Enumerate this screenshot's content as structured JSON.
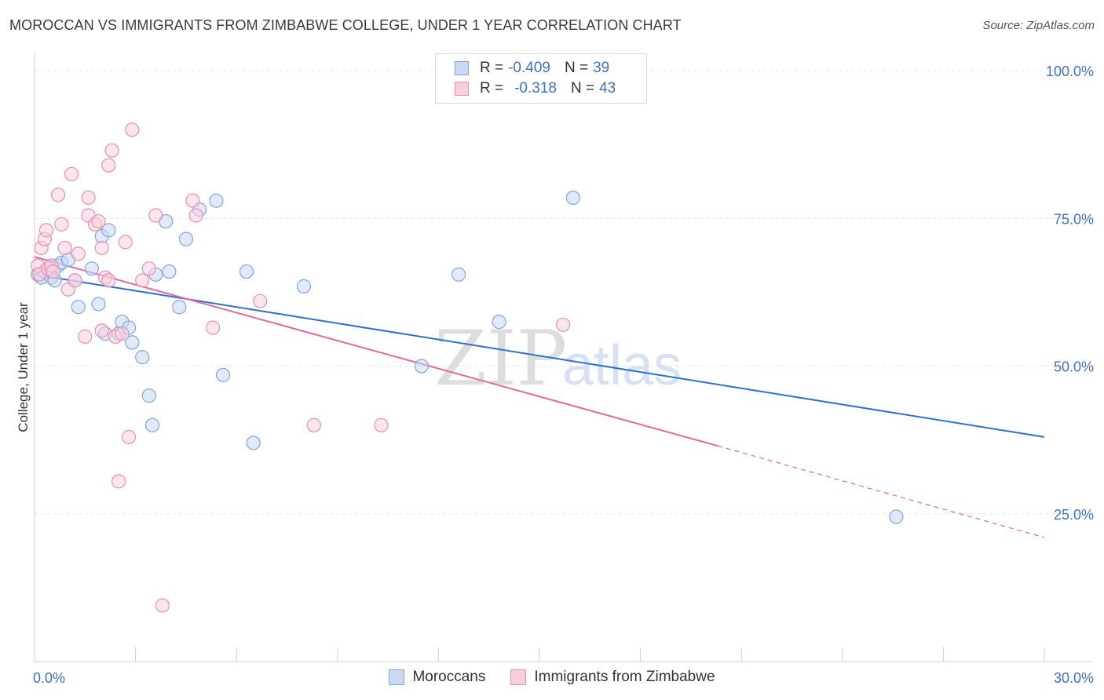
{
  "title": "MOROCCAN VS IMMIGRANTS FROM ZIMBABWE COLLEGE, UNDER 1 YEAR CORRELATION CHART",
  "source": "Source: ZipAtlas.com",
  "watermark": {
    "zip": "ZIP",
    "atlas": "atlas"
  },
  "legend_top": [
    {
      "r_label": "R =",
      "r_value": "-0.409",
      "n_label": "N =",
      "n_value": "39"
    },
    {
      "r_label": "R =",
      "r_value": "-0.318",
      "n_label": "N =",
      "n_value": "43"
    }
  ],
  "legend_bottom": [
    {
      "label": "Moroccans"
    },
    {
      "label": "Immigrants from Zimbabwe"
    }
  ],
  "colors": {
    "blue_fill": "#c7d9f5",
    "blue_stroke": "#7ea6e0",
    "blue_line": "#2f6fd0",
    "pink_fill": "#f9cfdc",
    "pink_stroke": "#eb8faf",
    "pink_line": "#e06a98",
    "grid": "#e4e4e4",
    "axis_text": "#3d72c4"
  },
  "chart_data": {
    "type": "scatter",
    "title": "MOROCCAN VS IMMIGRANTS FROM ZIMBABWE COLLEGE, UNDER 1 YEAR CORRELATION CHART",
    "xlabel": "",
    "ylabel": "College, Under 1 year",
    "xlim": [
      0,
      30
    ],
    "ylim": [
      0,
      102
    ],
    "x_tick_labels": [
      "0.0%",
      "30.0%"
    ],
    "y_ticks": [
      25,
      50,
      75,
      100
    ],
    "y_tick_labels": [
      "25.0%",
      "50.0%",
      "75.0%",
      "100.0%"
    ],
    "grid": true,
    "series": [
      {
        "name": "Moroccans",
        "color": "blue",
        "points": [
          [
            0.1,
            65.5
          ],
          [
            0.2,
            65.0
          ],
          [
            0.3,
            66.0
          ],
          [
            0.4,
            66.5
          ],
          [
            0.5,
            65.0
          ],
          [
            0.6,
            64.5
          ],
          [
            0.7,
            67.0
          ],
          [
            0.8,
            67.5
          ],
          [
            1.0,
            68.0
          ],
          [
            1.2,
            64.5
          ],
          [
            1.3,
            60.0
          ],
          [
            1.9,
            60.5
          ],
          [
            2.0,
            72.0
          ],
          [
            2.2,
            73.0
          ],
          [
            2.1,
            55.5
          ],
          [
            2.5,
            55.5
          ],
          [
            1.7,
            66.5
          ],
          [
            2.6,
            57.5
          ],
          [
            2.8,
            56.5
          ],
          [
            2.9,
            54.0
          ],
          [
            3.2,
            51.5
          ],
          [
            3.4,
            45.0
          ],
          [
            3.5,
            40.0
          ],
          [
            3.9,
            74.5
          ],
          [
            3.6,
            65.5
          ],
          [
            4.3,
            60.0
          ],
          [
            4.5,
            71.5
          ],
          [
            4.0,
            66.0
          ],
          [
            5.4,
            78.0
          ],
          [
            4.9,
            76.5
          ],
          [
            5.6,
            48.5
          ],
          [
            6.5,
            37.0
          ],
          [
            6.3,
            66.0
          ],
          [
            8.0,
            63.5
          ],
          [
            11.5,
            50.0
          ],
          [
            12.6,
            65.5
          ],
          [
            13.8,
            57.5
          ],
          [
            16.0,
            78.5
          ],
          [
            25.6,
            24.5
          ]
        ],
        "trend": {
          "x": [
            0,
            30
          ],
          "y": [
            65.5,
            38.0
          ]
        }
      },
      {
        "name": "Immigrants from Zimbabwe",
        "color": "pink",
        "points": [
          [
            0.1,
            67.0
          ],
          [
            0.15,
            65.5
          ],
          [
            0.2,
            70.0
          ],
          [
            0.3,
            71.5
          ],
          [
            0.35,
            73.0
          ],
          [
            0.4,
            66.5
          ],
          [
            0.5,
            67.0
          ],
          [
            0.55,
            66.0
          ],
          [
            0.7,
            79.0
          ],
          [
            0.8,
            74.0
          ],
          [
            0.9,
            70.0
          ],
          [
            1.0,
            63.0
          ],
          [
            1.1,
            82.5
          ],
          [
            1.2,
            64.5
          ],
          [
            1.3,
            69.0
          ],
          [
            1.5,
            55.0
          ],
          [
            1.6,
            78.5
          ],
          [
            1.6,
            75.5
          ],
          [
            1.8,
            74.0
          ],
          [
            1.9,
            74.5
          ],
          [
            2.0,
            70.0
          ],
          [
            2.1,
            65.0
          ],
          [
            2.3,
            86.5
          ],
          [
            2.2,
            84.0
          ],
          [
            2.0,
            56.0
          ],
          [
            2.2,
            64.5
          ],
          [
            2.4,
            55.0
          ],
          [
            2.5,
            30.5
          ],
          [
            2.6,
            55.5
          ],
          [
            2.8,
            38.0
          ],
          [
            2.7,
            71.0
          ],
          [
            2.9,
            90.0
          ],
          [
            3.2,
            64.5
          ],
          [
            3.4,
            66.5
          ],
          [
            3.6,
            75.5
          ],
          [
            3.8,
            9.5
          ],
          [
            4.7,
            78.0
          ],
          [
            4.8,
            75.5
          ],
          [
            5.3,
            56.5
          ],
          [
            6.7,
            61.0
          ],
          [
            8.3,
            40.0
          ],
          [
            10.3,
            40.0
          ],
          [
            15.7,
            57.0
          ]
        ],
        "trend": {
          "x": [
            0,
            20.3
          ],
          "y": [
            68.5,
            36.5
          ]
        },
        "trend_extension": {
          "x": [
            20.3,
            30
          ],
          "y": [
            36.5,
            21.0
          ]
        }
      }
    ]
  }
}
